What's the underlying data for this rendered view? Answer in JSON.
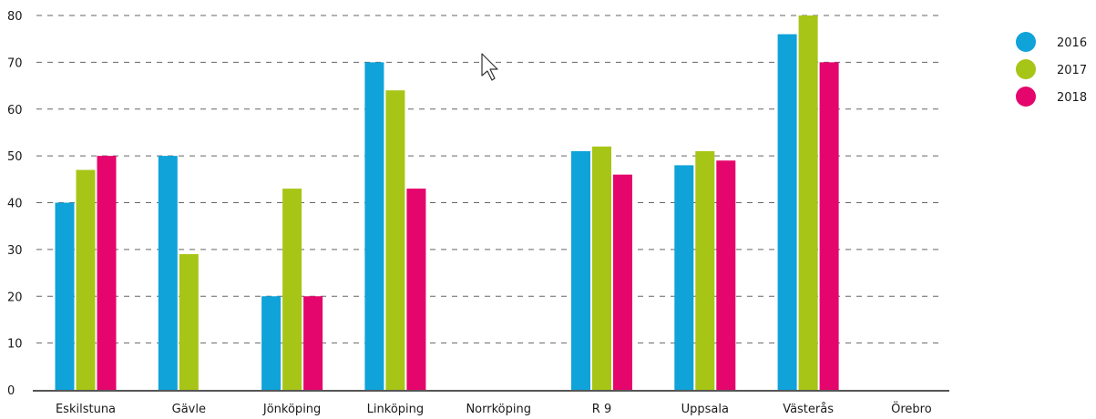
{
  "chart_data": {
    "type": "bar",
    "title": "",
    "xlabel": "",
    "ylabel": "",
    "ylim": [
      0,
      80
    ],
    "yticks": [
      0,
      10,
      20,
      30,
      40,
      50,
      60,
      70,
      80
    ],
    "grid": true,
    "legend_position": "top-right",
    "categories": [
      "Eskilstuna",
      "Gävle",
      "Jönköping",
      "Linköping",
      "Norrköping",
      "R 9",
      "Uppsala",
      "Västerås",
      "Örebro"
    ],
    "series": [
      {
        "name": "2016",
        "color": "#0fa3da",
        "values": [
          40,
          50,
          20,
          70,
          null,
          51,
          48,
          76,
          null
        ]
      },
      {
        "name": "2017",
        "color": "#a7c516",
        "values": [
          47,
          29,
          43,
          64,
          null,
          52,
          51,
          80,
          null
        ]
      },
      {
        "name": "2018",
        "color": "#e4066c",
        "values": [
          50,
          null,
          20,
          43,
          null,
          46,
          49,
          70,
          null
        ]
      }
    ]
  },
  "cursor_icon": "mouse-pointer-icon"
}
